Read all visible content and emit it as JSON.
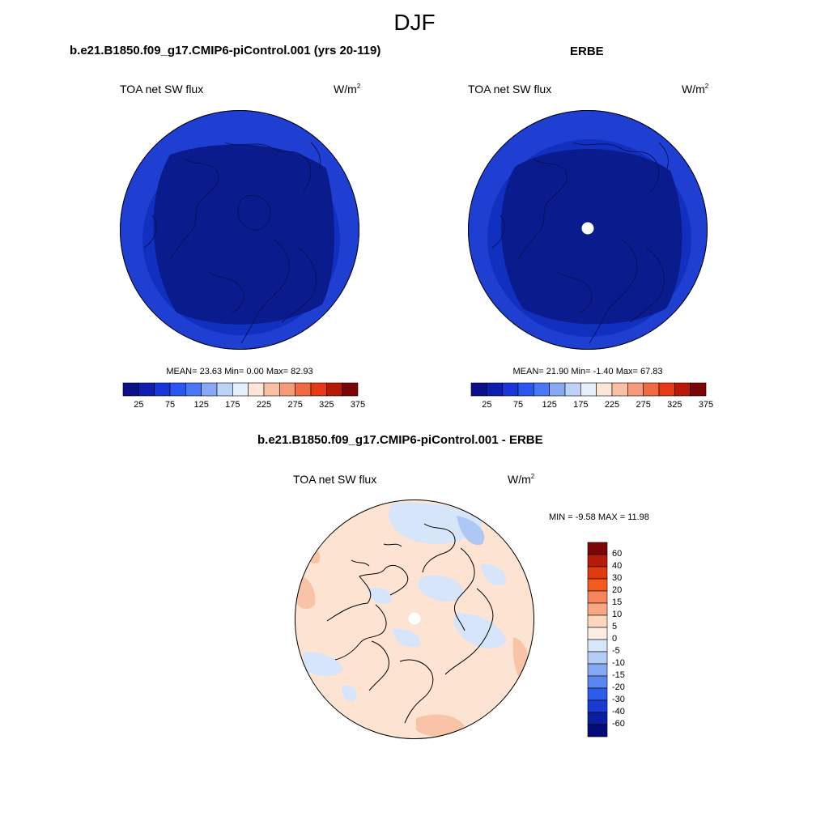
{
  "figure": {
    "title": "DJF"
  },
  "panels": [
    {
      "id": "model",
      "title": "b.e21.B1850.f09_g17.CMIP6-piControl.001 (yrs 20-119)",
      "left_label": "TOA net SW flux",
      "units_base": "W/m",
      "units_exp": "2",
      "stats": "MEAN=  23.63  Min=   0.00  Max=  82.93",
      "colorbar": {
        "colors": [
          "#0a0f8a",
          "#0e1fb0",
          "#1a36d8",
          "#2a55f0",
          "#4a78f5",
          "#88a8f4",
          "#bcd2f8",
          "#e6f0fd",
          "#fde6d8",
          "#f9c0a3",
          "#f59a7a",
          "#f06a42",
          "#e53a15",
          "#b81a0a",
          "#7c0505"
        ],
        "tick_labels": [
          "25",
          "75",
          "125",
          "175",
          "225",
          "275",
          "325",
          "375"
        ]
      },
      "map": {
        "outer_color": "#1f3fd3",
        "mid_color": "#1230c0",
        "inner_color": "#0a1b8e",
        "pole_hole": false
      }
    },
    {
      "id": "obs",
      "title": "ERBE",
      "left_label": "TOA net SW flux",
      "units_base": "W/m",
      "units_exp": "2",
      "stats": "MEAN=  21.90  Min=  -1.40  Max=  67.83",
      "colorbar": {
        "colors": [
          "#0a0f8a",
          "#0e1fb0",
          "#1a36d8",
          "#2a55f0",
          "#4a78f5",
          "#88a8f4",
          "#bcd2f8",
          "#e6f0fd",
          "#fde6d8",
          "#f9c0a3",
          "#f59a7a",
          "#f06a42",
          "#e53a15",
          "#b81a0a",
          "#7c0505"
        ],
        "tick_labels": [
          "25",
          "75",
          "125",
          "175",
          "225",
          "275",
          "325",
          "375"
        ]
      },
      "map": {
        "outer_color": "#1f3fd3",
        "mid_color": "#1230c0",
        "inner_color": "#0a1b8e",
        "pole_hole": true
      }
    },
    {
      "id": "diff",
      "title": "b.e21.B1850.f09_g17.CMIP6-piControl.001 - ERBE",
      "left_label": "TOA net SW flux",
      "units_base": "W/m",
      "units_exp": "2",
      "stats": "MIN =  -9.58 MAX =  11.98",
      "colorbar": {
        "colors": [
          "#7c0505",
          "#b81a0a",
          "#e03a10",
          "#f45a1e",
          "#f6855a",
          "#f9a886",
          "#fdd6bd",
          "#fdeee3",
          "#d8e6fa",
          "#b4cdf7",
          "#86a9f3",
          "#5a86f0",
          "#2c5cec",
          "#1a3ad4",
          "#0a1f9e",
          "#040b78"
        ],
        "tick_labels": [
          "60",
          "40",
          "30",
          "20",
          "15",
          "10",
          "5",
          "0",
          "-5",
          "-10",
          "-15",
          "-20",
          "-30",
          "-40",
          "-60"
        ]
      },
      "map": {
        "base_color": "#fde4d2",
        "neg_color": "#d6e5f9",
        "pos_color": "#f9c3a7",
        "pole_hole": true
      }
    }
  ]
}
